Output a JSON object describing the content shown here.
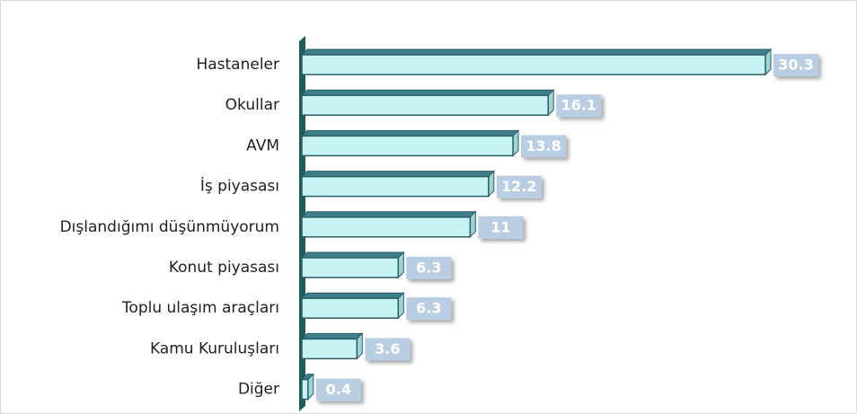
{
  "chart_data": {
    "type": "bar",
    "orientation": "horizontal",
    "categories": [
      "Hastaneler",
      "Okullar",
      "AVM",
      "İş piyasası",
      "Dışlandığımı düşünmüyorum",
      "Konut piyasası",
      "Toplu ulaşım araçları",
      "Kamu Kuruluşları",
      "Diğer"
    ],
    "values": [
      30.3,
      16.1,
      13.8,
      12.2,
      11,
      6.3,
      6.3,
      3.6,
      0.4
    ],
    "color": "#c8f3f3",
    "xlim": [
      0,
      32
    ]
  }
}
